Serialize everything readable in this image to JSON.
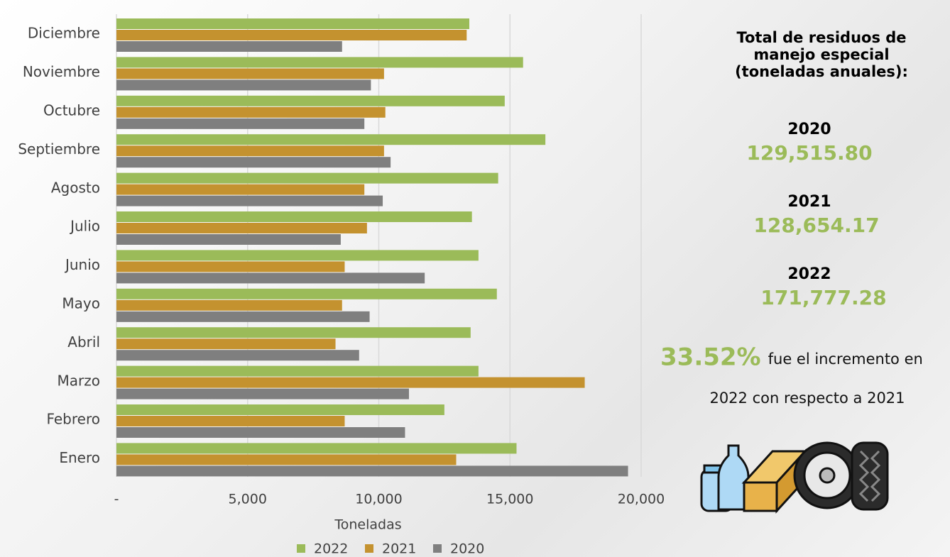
{
  "chart_data": {
    "type": "bar",
    "orientation": "horizontal",
    "categories": [
      "Diciembre",
      "Noviembre",
      "Octubre",
      "Septiembre",
      "Agosto",
      "Julio",
      "Junio",
      "Mayo",
      "Abril",
      "Marzo",
      "Febrero",
      "Enero"
    ],
    "series": [
      {
        "name": "2022",
        "color": "#9bbb59",
        "values": [
          13450,
          15500,
          14800,
          16350,
          14550,
          13550,
          13800,
          14500,
          13500,
          13800,
          12500,
          15250
        ]
      },
      {
        "name": "2021",
        "color": "#c4922f",
        "values": [
          13350,
          10200,
          10250,
          10200,
          9450,
          9550,
          8700,
          8600,
          8350,
          17850,
          8700,
          12950
        ]
      },
      {
        "name": "2020",
        "color": "#7f7f7f",
        "values": [
          8600,
          9700,
          9450,
          10450,
          10150,
          8550,
          11750,
          9650,
          9250,
          11150,
          11000,
          19500
        ]
      }
    ],
    "xlim": [
      0,
      20000
    ],
    "xticks": [
      {
        "value": 0,
        "label": "-"
      },
      {
        "value": 5000,
        "label": "5,000"
      },
      {
        "value": 10000,
        "label": "10,000"
      },
      {
        "value": 15000,
        "label": "15,000"
      },
      {
        "value": 20000,
        "label": "20,000"
      }
    ],
    "xlabel": "Toneladas",
    "grid": true,
    "legend": "bottom"
  },
  "panel": {
    "title": [
      "Total de residuos de",
      "manejo especial",
      "(toneladas anuales):"
    ],
    "totals": [
      {
        "year": "2020",
        "value": "129,515.80"
      },
      {
        "year": "2021",
        "value": "128,654.17"
      },
      {
        "year": "2022",
        "value": "171,777.28"
      }
    ],
    "highlight": "33.52%",
    "note": [
      "fue el incremento en",
      "2022 con respecto a 2021"
    ]
  }
}
